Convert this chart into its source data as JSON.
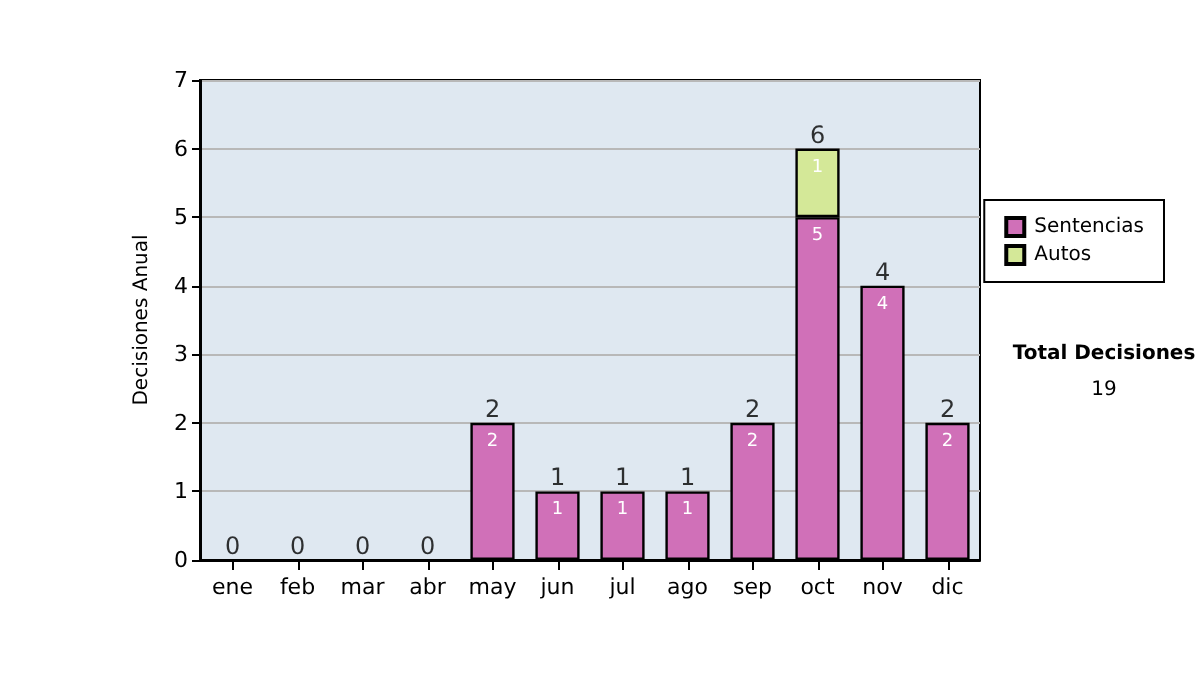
{
  "chart_data": {
    "type": "bar",
    "stacked": true,
    "ylabel": "Decisiones Anual",
    "categories": [
      "ene",
      "feb",
      "mar",
      "abr",
      "may",
      "jun",
      "jul",
      "ago",
      "sep",
      "oct",
      "nov",
      "dic"
    ],
    "series": [
      {
        "name": "Sentencias",
        "color": "#d070b8",
        "values": [
          0,
          0,
          0,
          0,
          2,
          1,
          1,
          1,
          2,
          5,
          4,
          2
        ],
        "value_labels": [
          null,
          null,
          null,
          null,
          "2",
          "1",
          "1",
          "1",
          "2",
          "5",
          "4",
          "2"
        ]
      },
      {
        "name": "Autos",
        "color": "#d4e898",
        "values": [
          0,
          0,
          0,
          0,
          0,
          0,
          0,
          0,
          0,
          1,
          0,
          0
        ],
        "value_labels": [
          null,
          null,
          null,
          null,
          null,
          null,
          null,
          null,
          null,
          "1",
          null,
          null
        ]
      }
    ],
    "totals": [
      "0",
      "0",
      "0",
      "0",
      "2",
      "1",
      "1",
      "1",
      "2",
      "6",
      "4",
      "2"
    ],
    "ylim": [
      0,
      7
    ],
    "yticks": [
      0,
      1,
      2,
      3,
      4,
      5,
      6,
      7
    ],
    "grid": "y",
    "legend": "right",
    "annotations": [
      "Total Decisiones",
      "19"
    ]
  }
}
